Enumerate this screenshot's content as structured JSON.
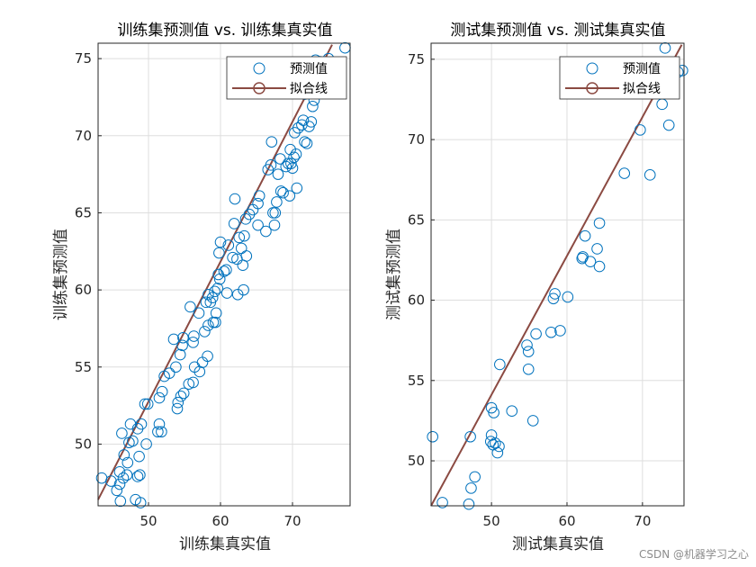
{
  "chart_data": [
    {
      "type": "scatter",
      "title": "训练集预测值 vs. 训练集真实值",
      "xlabel": "训练集真实值",
      "ylabel": "训练集预测值",
      "xlim": [
        43,
        78
      ],
      "ylim": [
        46,
        76
      ],
      "xticks": [
        50,
        60,
        70
      ],
      "yticks": [
        50,
        55,
        60,
        65,
        70,
        75
      ],
      "grid": true,
      "legend_position": "top-right",
      "series": [
        {
          "name": "预测值",
          "marker": "circle",
          "color": "#0072BD",
          "points": [
            [
              43.5,
              47.8
            ],
            [
              44.8,
              47.6
            ],
            [
              45.6,
              47.0
            ],
            [
              46.0,
              47.4
            ],
            [
              46.1,
              46.3
            ],
            [
              46.5,
              47.8
            ],
            [
              46.0,
              48.2
            ],
            [
              46.3,
              50.7
            ],
            [
              46.6,
              49.3
            ],
            [
              47.0,
              48.0
            ],
            [
              47.1,
              48.8
            ],
            [
              47.3,
              50.1
            ],
            [
              47.5,
              51.3
            ],
            [
              47.8,
              50.2
            ],
            [
              48.2,
              46.4
            ],
            [
              48.5,
              47.9
            ],
            [
              48.7,
              49.2
            ],
            [
              48.8,
              48.0
            ],
            [
              48.9,
              46.2
            ],
            [
              49.0,
              51.3
            ],
            [
              48.5,
              51.0
            ],
            [
              49.7,
              50.0
            ],
            [
              49.5,
              52.6
            ],
            [
              49.9,
              52.6
            ],
            [
              51.3,
              50.8
            ],
            [
              51.5,
              51.3
            ],
            [
              51.8,
              50.8
            ],
            [
              51.5,
              53.0
            ],
            [
              51.9,
              53.4
            ],
            [
              52.2,
              54.4
            ],
            [
              52.9,
              54.6
            ],
            [
              53.5,
              56.8
            ],
            [
              53.8,
              55.0
            ],
            [
              54.0,
              52.3
            ],
            [
              54.1,
              52.7
            ],
            [
              54.5,
              53.1
            ],
            [
              54.9,
              53.3
            ],
            [
              54.4,
              55.8
            ],
            [
              54.7,
              56.4
            ],
            [
              54.8,
              56.9
            ],
            [
              55.6,
              53.9
            ],
            [
              56.2,
              54.0
            ],
            [
              56.4,
              55.0
            ],
            [
              56.2,
              56.6
            ],
            [
              56.3,
              57.0
            ],
            [
              55.8,
              58.9
            ],
            [
              57.1,
              54.7
            ],
            [
              57.5,
              55.3
            ],
            [
              57.8,
              57.3
            ],
            [
              57.0,
              58.5
            ],
            [
              58.2,
              55.7
            ],
            [
              58.3,
              57.7
            ],
            [
              58.0,
              59.2
            ],
            [
              58.3,
              59.7
            ],
            [
              58.6,
              59.2
            ],
            [
              58.9,
              59.5
            ],
            [
              59.0,
              57.9
            ],
            [
              59.3,
              57.9
            ],
            [
              59.4,
              58.5
            ],
            [
              59.2,
              59.9
            ],
            [
              59.6,
              60.1
            ],
            [
              59.7,
              61.0
            ],
            [
              59.9,
              60.7
            ],
            [
              59.8,
              62.4
            ],
            [
              60.0,
              63.1
            ],
            [
              60.5,
              61.2
            ],
            [
              60.8,
              61.3
            ],
            [
              60.9,
              59.8
            ],
            [
              61.1,
              62.9
            ],
            [
              61.7,
              62.1
            ],
            [
              61.9,
              64.3
            ],
            [
              62.0,
              65.9
            ],
            [
              62.3,
              62.0
            ],
            [
              62.4,
              59.7
            ],
            [
              62.6,
              63.4
            ],
            [
              62.9,
              62.7
            ],
            [
              63.1,
              61.6
            ],
            [
              63.3,
              63.5
            ],
            [
              63.2,
              60.0
            ],
            [
              63.5,
              64.6
            ],
            [
              63.6,
              62.2
            ],
            [
              64.0,
              64.9
            ],
            [
              64.5,
              65.2
            ],
            [
              65.2,
              65.6
            ],
            [
              65.4,
              66.1
            ],
            [
              65.2,
              64.2
            ],
            [
              66.3,
              63.8
            ],
            [
              66.6,
              67.8
            ],
            [
              67.0,
              68.1
            ],
            [
              67.1,
              69.6
            ],
            [
              67.3,
              65.0
            ],
            [
              67.5,
              64.2
            ],
            [
              67.6,
              65.0
            ],
            [
              67.8,
              65.7
            ],
            [
              68.0,
              67.5
            ],
            [
              68.3,
              68.5
            ],
            [
              68.4,
              66.4
            ],
            [
              68.7,
              66.3
            ],
            [
              69.1,
              68.0
            ],
            [
              69.4,
              68.2
            ],
            [
              69.8,
              68.2
            ],
            [
              69.7,
              69.1
            ],
            [
              69.6,
              66.1
            ],
            [
              70.0,
              67.9
            ],
            [
              70.2,
              68.6
            ],
            [
              70.5,
              68.8
            ],
            [
              70.6,
              66.6
            ],
            [
              70.3,
              70.2
            ],
            [
              70.8,
              70.5
            ],
            [
              71.3,
              70.7
            ],
            [
              71.5,
              71.0
            ],
            [
              71.7,
              69.6
            ],
            [
              72.0,
              69.5
            ],
            [
              72.3,
              70.6
            ],
            [
              72.6,
              70.9
            ],
            [
              72.8,
              71.9
            ],
            [
              73.0,
              72.3
            ],
            [
              73.2,
              74.9
            ],
            [
              73.8,
              74.8
            ],
            [
              74.3,
              73.2
            ],
            [
              75.0,
              75.0
            ],
            [
              75.7,
              74.4
            ],
            [
              75.9,
              73.2
            ],
            [
              76.4,
              73.3
            ],
            [
              77.3,
              75.7
            ],
            [
              71.7,
              72.7
            ]
          ]
        },
        {
          "name": "拟合线",
          "type": "line",
          "color": "#8B4A42",
          "x": [
            43,
            75.5
          ],
          "y": [
            46.4,
            75.9
          ]
        }
      ]
    },
    {
      "type": "scatter",
      "title": "测试集预测值 vs. 测试集真实值",
      "xlabel": "测试集真实值",
      "ylabel": "测试集预测值",
      "xlim": [
        42,
        75.5
      ],
      "ylim": [
        47.2,
        76
      ],
      "xticks": [
        50,
        60,
        70
      ],
      "yticks": [
        50,
        55,
        60,
        65,
        70,
        75
      ],
      "grid": true,
      "legend_position": "top-right",
      "series": [
        {
          "name": "预测值",
          "marker": "circle",
          "color": "#0072BD",
          "points": [
            [
              42.2,
              51.5
            ],
            [
              43.5,
              47.4
            ],
            [
              47.0,
              47.3
            ],
            [
              47.3,
              48.3
            ],
            [
              47.8,
              49.0
            ],
            [
              47.2,
              51.5
            ],
            [
              49.9,
              51.2
            ],
            [
              50.0,
              51.6
            ],
            [
              50.2,
              51.0
            ],
            [
              50.5,
              51.1
            ],
            [
              50.8,
              50.5
            ],
            [
              51.0,
              50.9
            ],
            [
              50.0,
              53.3
            ],
            [
              50.3,
              53.0
            ],
            [
              51.1,
              56.0
            ],
            [
              52.7,
              53.1
            ],
            [
              54.7,
              57.2
            ],
            [
              54.9,
              56.8
            ],
            [
              54.9,
              55.7
            ],
            [
              55.5,
              52.5
            ],
            [
              55.9,
              57.9
            ],
            [
              57.9,
              58.0
            ],
            [
              58.2,
              60.1
            ],
            [
              58.4,
              60.4
            ],
            [
              59.1,
              58.1
            ],
            [
              60.1,
              60.2
            ],
            [
              62.0,
              62.6
            ],
            [
              62.1,
              62.7
            ],
            [
              62.4,
              64.0
            ],
            [
              63.1,
              62.4
            ],
            [
              64.0,
              63.2
            ],
            [
              64.3,
              64.8
            ],
            [
              64.3,
              62.1
            ],
            [
              67.6,
              67.9
            ],
            [
              69.7,
              70.6
            ],
            [
              71.0,
              67.8
            ],
            [
              72.6,
              72.2
            ],
            [
              73.0,
              75.7
            ],
            [
              73.5,
              70.9
            ],
            [
              74.0,
              73.0
            ],
            [
              74.7,
              74.2
            ],
            [
              75.3,
              74.3
            ]
          ]
        },
        {
          "name": "拟合线",
          "type": "line",
          "color": "#8B4A42",
          "x": [
            42,
            75.2
          ],
          "y": [
            47.2,
            75.9
          ]
        }
      ]
    }
  ],
  "watermark": "CSDN @机器学习之心"
}
